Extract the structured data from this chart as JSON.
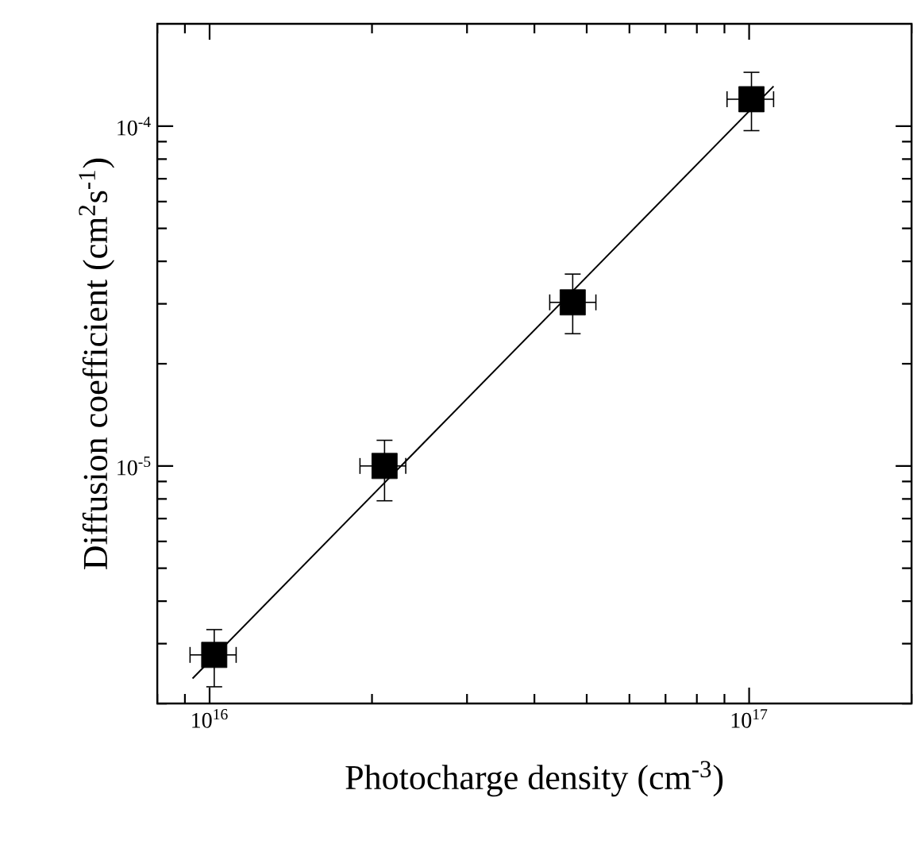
{
  "chart_data": {
    "type": "scatter",
    "xlabel": "Photocharge density (cm$^{-3}$)",
    "ylabel": "Diffusion coefficient (cm$^{2}$s$^{-1}$)",
    "log": "xy",
    "xlim": [
      8000000000000000.0,
      2e+17
    ],
    "ylim": [
      2e-06,
      0.0002
    ],
    "xticks": [
      {
        "value": 1e+16,
        "label": "10$^{16}$"
      },
      {
        "value": 1e+17,
        "label": "10$^{17}$"
      }
    ],
    "yticks": [
      {
        "value": 1e-05,
        "label": "10$^{-5}$"
      },
      {
        "value": 0.0001,
        "label": "10$^{-4}$"
      }
    ],
    "series": [
      {
        "color": "#000000",
        "marker": "square",
        "x": [
          1.02e+16,
          2.11e+16,
          4.71e+16,
          1.01e+17
        ],
        "values": [
          2.78e-06,
          1e-05,
          3.03e-05,
          0.00012
        ],
        "errors": [
          [
            2.24e-06,
            3.3e-06
          ],
          [
            7.9e-06,
            1.19e-05
          ],
          [
            2.45e-05,
            3.67e-05
          ],
          [
            9.7e-05,
            0.000144
          ]
        ],
        "xerrors": [
          [
            9200000000000000.0,
            1.12e+16
          ],
          [
            1.9e+16,
            2.31e+16
          ],
          [
            4.27e+16,
            5.2e+16
          ],
          [
            9.1e+16,
            1.11e+17
          ]
        ]
      },
      {
        "type": "line",
        "color": "#000000",
        "marker": "none",
        "line_style": "solid",
        "x": [
          9300000000000000.0,
          1.11e+17
        ],
        "values": [
          2.37e-06,
          0.000131
        ]
      }
    ]
  }
}
